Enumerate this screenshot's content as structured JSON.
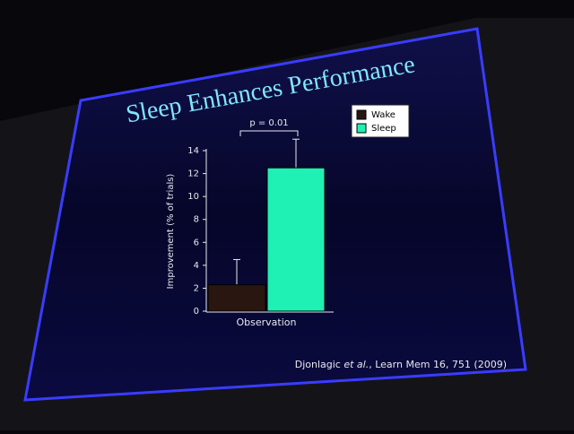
{
  "chart_data": {
    "type": "bar",
    "title": "Sleep Enhances Performance",
    "y_label": "Improvement (% of trials)",
    "categories": [
      "Observation"
    ],
    "series": [
      {
        "name": "Wake",
        "color": "#2a1610",
        "values": [
          2.3
        ],
        "errors": [
          2.2
        ]
      },
      {
        "name": "Sleep",
        "color": "#1ff0b4",
        "values": [
          12.5
        ],
        "errors": [
          2.5
        ]
      }
    ],
    "ylim": [
      0,
      14
    ],
    "yticks": [
      0,
      2,
      4,
      6,
      8,
      10,
      12,
      14
    ],
    "annotation": "p = 0.01",
    "citation": {
      "author": "Djonlagic",
      "etal": "et al.",
      "rest": ", Learn Mem 16, 751 (2009)"
    }
  }
}
